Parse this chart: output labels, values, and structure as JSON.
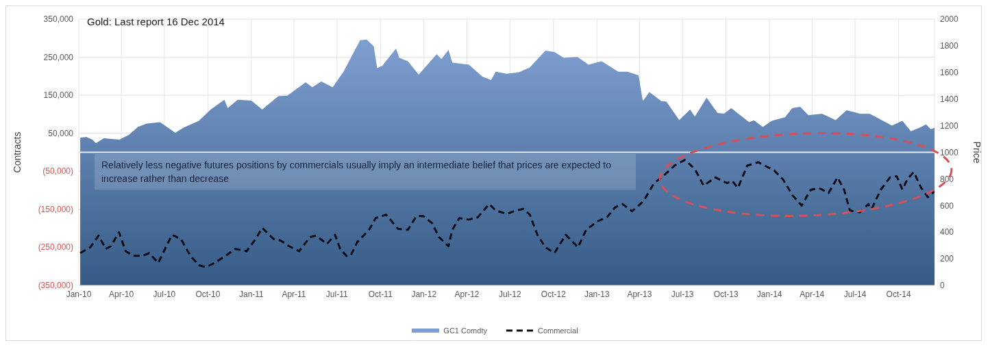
{
  "chart_data": {
    "type": "area",
    "title": "Gold: Last report 16 Dec 2014",
    "ylabel": "Contracts",
    "y2label": "Price",
    "annotations": [
      "Relatively less negative futures positions by commercials usually imply an intermediate belief that prices are expected to increase rather than decrease"
    ],
    "xlim": [
      "2010-01-01",
      "2014-12-16"
    ],
    "xticks": [
      {
        "value": "2010-01-01",
        "label": "Jan-10"
      },
      {
        "value": "2010-04-01",
        "label": "Apr-10"
      },
      {
        "value": "2010-07-01",
        "label": "Jul-10"
      },
      {
        "value": "2010-10-01",
        "label": "Oct-10"
      },
      {
        "value": "2011-01-01",
        "label": "Jan-11"
      },
      {
        "value": "2011-04-01",
        "label": "Apr-11"
      },
      {
        "value": "2011-07-01",
        "label": "Jul-11"
      },
      {
        "value": "2011-10-01",
        "label": "Oct-11"
      },
      {
        "value": "2012-01-01",
        "label": "Jan-12"
      },
      {
        "value": "2012-04-01",
        "label": "Apr-12"
      },
      {
        "value": "2012-07-01",
        "label": "Jul-12"
      },
      {
        "value": "2012-10-01",
        "label": "Oct-12"
      },
      {
        "value": "2013-01-01",
        "label": "Jan-13"
      },
      {
        "value": "2013-04-01",
        "label": "Apr-13"
      },
      {
        "value": "2013-07-01",
        "label": "Jul-13"
      },
      {
        "value": "2013-10-01",
        "label": "Oct-13"
      },
      {
        "value": "2014-01-01",
        "label": "Jan-14"
      },
      {
        "value": "2014-04-01",
        "label": "Apr-14"
      },
      {
        "value": "2014-07-01",
        "label": "Jul-14"
      },
      {
        "value": "2014-10-01",
        "label": "Oct-14"
      }
    ],
    "ylim": [
      -350000,
      350000
    ],
    "yticks": [
      {
        "value": -350000,
        "label": "(350,000)"
      },
      {
        "value": -250000,
        "label": "(250,000)"
      },
      {
        "value": -150000,
        "label": "(150,000)"
      },
      {
        "value": -50000,
        "label": "(50,000)"
      },
      {
        "value": 50000,
        "label": "50,000"
      },
      {
        "value": 150000,
        "label": "150,000"
      },
      {
        "value": 250000,
        "label": "250,000"
      },
      {
        "value": 350000,
        "label": "350,000"
      }
    ],
    "y2lim": [
      0,
      2000
    ],
    "y2ticks": [
      0,
      200,
      400,
      600,
      800,
      1000,
      1200,
      1400,
      1600,
      1800,
      2000
    ],
    "ref_lines": [
      {
        "axis": "y",
        "value": 0,
        "color": "#e4ebf5"
      }
    ],
    "grid": true,
    "legend": "bottom",
    "series": [
      {
        "name": "GC1 Comdty",
        "axis": "y2",
        "color": "#7f9fd0",
        "x": [
          "2010-01-04",
          "2010-01-17",
          "2010-01-30",
          "2010-02-06",
          "2010-02-23",
          "2010-03-28",
          "2010-04-17",
          "2010-05-06",
          "2010-05-25",
          "2010-06-22",
          "2010-07-24",
          "2010-08-10",
          "2010-09-12",
          "2010-10-07",
          "2010-11-05",
          "2010-11-12",
          "2010-12-03",
          "2011-01-01",
          "2011-01-24",
          "2011-02-27",
          "2011-03-18",
          "2011-04-26",
          "2011-05-10",
          "2011-05-29",
          "2011-06-22",
          "2011-07-15",
          "2011-08-19",
          "2011-09-02",
          "2011-09-17",
          "2011-09-24",
          "2011-10-05",
          "2011-11-03",
          "2011-11-10",
          "2011-11-28",
          "2011-12-21",
          "2012-01-28",
          "2012-02-07",
          "2012-02-22",
          "2012-03-01",
          "2012-04-05",
          "2012-05-04",
          "2012-05-22",
          "2012-06-01",
          "2012-06-24",
          "2012-07-19",
          "2012-08-12",
          "2012-09-14",
          "2012-10-03",
          "2012-10-23",
          "2012-11-21",
          "2012-12-14",
          "2013-01-11",
          "2013-02-15",
          "2013-03-06",
          "2013-03-30",
          "2013-04-08",
          "2013-04-22",
          "2013-05-17",
          "2013-05-28",
          "2013-06-24",
          "2013-07-17",
          "2013-07-27",
          "2013-08-21",
          "2013-09-13",
          "2013-09-27",
          "2013-10-12",
          "2013-11-19",
          "2013-11-29",
          "2013-12-18",
          "2014-01-06",
          "2014-02-03",
          "2014-02-18",
          "2014-03-07",
          "2014-03-24",
          "2014-04-22",
          "2014-05-21",
          "2014-06-13",
          "2014-07-12",
          "2014-08-01",
          "2014-09-17",
          "2014-10-09",
          "2014-10-27",
          "2014-11-18",
          "2014-11-28",
          "2014-12-08",
          "2014-12-16"
        ],
        "values": [
          1110,
          1115,
          1095,
          1068,
          1105,
          1095,
          1131,
          1190,
          1216,
          1226,
          1147,
          1184,
          1237,
          1321,
          1395,
          1331,
          1395,
          1388,
          1321,
          1421,
          1426,
          1526,
          1489,
          1532,
          1489,
          1605,
          1842,
          1847,
          1795,
          1632,
          1650,
          1779,
          1710,
          1684,
          1584,
          1737,
          1700,
          1768,
          1673,
          1658,
          1568,
          1542,
          1605,
          1590,
          1600,
          1637,
          1763,
          1753,
          1710,
          1716,
          1658,
          1684,
          1605,
          1605,
          1579,
          1384,
          1453,
          1384,
          1380,
          1242,
          1321,
          1268,
          1410,
          1295,
          1290,
          1332,
          1226,
          1240,
          1190,
          1237,
          1263,
          1332,
          1342,
          1279,
          1289,
          1242,
          1316,
          1289,
          1289,
          1200,
          1237,
          1158,
          1190,
          1210,
          1174,
          1184
        ]
      },
      {
        "name": "Commercial",
        "type": "line",
        "axis": "y",
        "color": "#0a0a14",
        "line_style": "dashed",
        "x": [
          "2010-01-04",
          "2010-01-25",
          "2010-02-12",
          "2010-02-27",
          "2010-03-10",
          "2010-03-27",
          "2010-04-10",
          "2010-04-26",
          "2010-05-16",
          "2010-05-30",
          "2010-06-18",
          "2010-06-30",
          "2010-07-17",
          "2010-08-05",
          "2010-08-25",
          "2010-09-12",
          "2010-09-27",
          "2010-10-15",
          "2010-11-08",
          "2010-11-28",
          "2010-12-22",
          "2011-01-10",
          "2011-01-24",
          "2011-02-17",
          "2011-03-04",
          "2011-03-22",
          "2011-04-12",
          "2011-05-05",
          "2011-05-18",
          "2011-06-10",
          "2011-06-27",
          "2011-07-08",
          "2011-07-21",
          "2011-07-30",
          "2011-08-13",
          "2011-09-07",
          "2011-09-21",
          "2011-10-13",
          "2011-11-07",
          "2011-11-28",
          "2011-12-16",
          "2011-12-31",
          "2012-01-18",
          "2012-02-02",
          "2012-02-22",
          "2012-03-01",
          "2012-03-16",
          "2012-04-05",
          "2012-04-24",
          "2012-05-18",
          "2012-06-01",
          "2012-06-24",
          "2012-07-14",
          "2012-07-29",
          "2012-08-12",
          "2012-08-28",
          "2012-09-14",
          "2012-10-03",
          "2012-10-27",
          "2012-11-15",
          "2012-11-22",
          "2012-12-09",
          "2013-01-03",
          "2013-01-22",
          "2013-02-09",
          "2013-02-24",
          "2013-03-16",
          "2013-04-03",
          "2013-04-11",
          "2013-05-02",
          "2013-05-21",
          "2013-06-14",
          "2013-07-06",
          "2013-07-27",
          "2013-08-15",
          "2013-09-08",
          "2013-10-03",
          "2013-10-14",
          "2013-10-26",
          "2013-11-15",
          "2013-12-08",
          "2014-01-11",
          "2014-01-30",
          "2014-02-18",
          "2014-03-10",
          "2014-03-29",
          "2014-04-16",
          "2014-05-06",
          "2014-05-25",
          "2014-06-08",
          "2014-06-20",
          "2014-07-11",
          "2014-07-29",
          "2014-08-05",
          "2014-08-24",
          "2014-09-13",
          "2014-09-27",
          "2014-10-09",
          "2014-10-20",
          "2014-11-02",
          "2014-11-18",
          "2014-12-02",
          "2014-12-16"
        ],
        "values": [
          -265000,
          -250000,
          -219000,
          -254000,
          -247000,
          -210000,
          -260000,
          -272000,
          -272000,
          -265000,
          -291000,
          -260000,
          -217000,
          -228000,
          -272000,
          -297000,
          -302000,
          -291000,
          -272000,
          -254000,
          -260000,
          -228000,
          -199000,
          -228000,
          -232000,
          -247000,
          -260000,
          -223000,
          -219000,
          -241000,
          -217000,
          -254000,
          -272000,
          -272000,
          -236000,
          -204000,
          -173000,
          -164000,
          -201000,
          -204000,
          -168000,
          -168000,
          -186000,
          -223000,
          -247000,
          -204000,
          -173000,
          -177000,
          -171000,
          -136000,
          -153000,
          -162000,
          -153000,
          -149000,
          -164000,
          -217000,
          -250000,
          -265000,
          -217000,
          -241000,
          -250000,
          -204000,
          -181000,
          -171000,
          -144000,
          -136000,
          -155000,
          -136000,
          -125000,
          -81000,
          -63000,
          -35000,
          -20000,
          -44000,
          -88000,
          -66000,
          -81000,
          -75000,
          -94000,
          -35000,
          -26000,
          -48000,
          -72000,
          -112000,
          -140000,
          -99000,
          -94000,
          -107000,
          -66000,
          -99000,
          -153000,
          -158000,
          -136000,
          -149000,
          -99000,
          -66000,
          -63000,
          -98000,
          -70000,
          -52000,
          -94000,
          -118000,
          -103000
        ]
      }
    ]
  }
}
